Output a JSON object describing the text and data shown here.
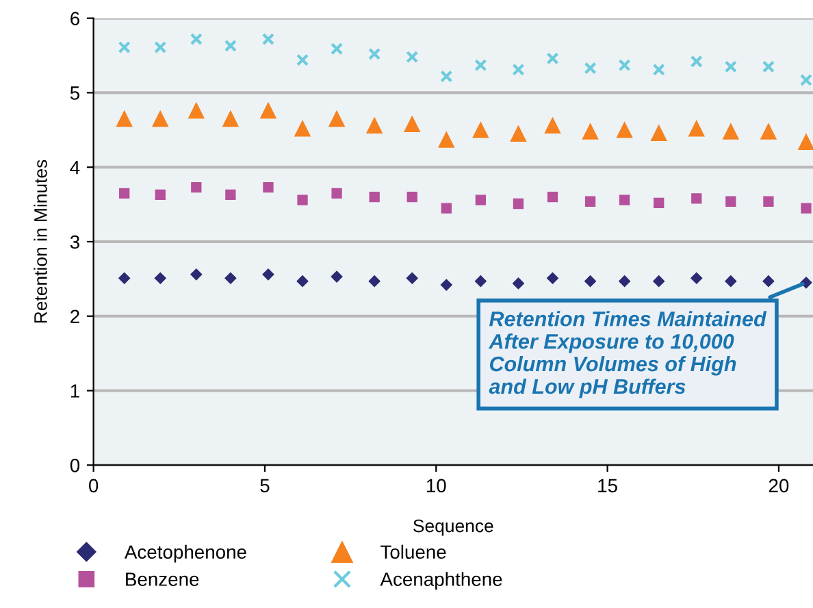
{
  "chart_data": {
    "type": "scatter",
    "xlabel": "Sequence",
    "ylabel": "Retention in Minutes",
    "x": [
      0.9,
      1.95,
      3.0,
      4.0,
      5.1,
      6.1,
      7.1,
      8.2,
      9.3,
      10.3,
      11.3,
      12.4,
      13.4,
      14.5,
      15.5,
      16.5,
      17.6,
      18.6,
      19.7,
      20.8
    ],
    "series": [
      {
        "name": "Acetophenone",
        "color": "#2b2a72",
        "marker": "diamond",
        "values": [
          2.51,
          2.51,
          2.56,
          2.51,
          2.56,
          2.47,
          2.53,
          2.47,
          2.51,
          2.42,
          2.47,
          2.44,
          2.51,
          2.47,
          2.47,
          2.47,
          2.51,
          2.47,
          2.47,
          2.45
        ]
      },
      {
        "name": "Benzene",
        "color": "#b5509a",
        "marker": "square",
        "values": [
          3.65,
          3.63,
          3.73,
          3.63,
          3.73,
          3.56,
          3.65,
          3.6,
          3.6,
          3.45,
          3.56,
          3.51,
          3.6,
          3.54,
          3.56,
          3.52,
          3.58,
          3.54,
          3.54,
          3.45
        ]
      },
      {
        "name": "Toluene",
        "color": "#f5821f",
        "marker": "triangle",
        "values": [
          4.65,
          4.65,
          4.76,
          4.65,
          4.76,
          4.52,
          4.65,
          4.56,
          4.58,
          4.37,
          4.5,
          4.45,
          4.56,
          4.48,
          4.5,
          4.46,
          4.52,
          4.48,
          4.48,
          4.34
        ]
      },
      {
        "name": "Acenaphthene",
        "color": "#6ccbdc",
        "marker": "cross",
        "values": [
          5.61,
          5.61,
          5.72,
          5.63,
          5.72,
          5.44,
          5.59,
          5.52,
          5.48,
          5.22,
          5.37,
          5.31,
          5.46,
          5.33,
          5.37,
          5.31,
          5.42,
          5.35,
          5.35,
          5.17
        ]
      }
    ],
    "xlim": [
      0,
      21
    ],
    "xticks": [
      0,
      5,
      10,
      15,
      20
    ],
    "ylim": [
      0,
      6
    ],
    "yticks": [
      0,
      1,
      2,
      3,
      4,
      5,
      6
    ],
    "grid": "y",
    "legend": "bottom",
    "annotations": [
      {
        "text": "Retention Times Maintained\nAfter Exposure to 10,000\nColumn Volumes of High\nand Low pH Buffers",
        "x": 20.8,
        "y": 2.45
      }
    ]
  }
}
